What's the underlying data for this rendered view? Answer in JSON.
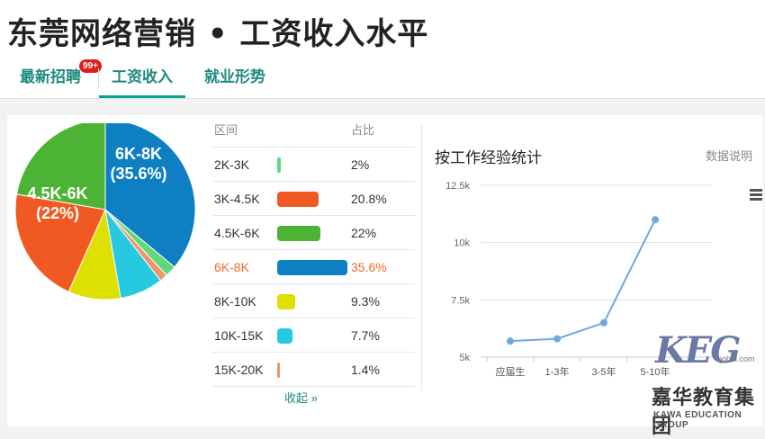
{
  "page": {
    "title": "东莞网络营销 • 工资收入水平"
  },
  "tabs": [
    {
      "label": "最新招聘",
      "badge": "99+"
    },
    {
      "label": "工资收入",
      "active": true
    },
    {
      "label": "就业形势"
    }
  ],
  "distribution": {
    "header_range": "区间",
    "header_share": "占比",
    "rows": [
      {
        "range": "2K-3K",
        "pct": "2%",
        "value": 2,
        "color": "#5fd77a"
      },
      {
        "range": "3K-4.5K",
        "pct": "20.8%",
        "value": 20.8,
        "color": "#f05a22"
      },
      {
        "range": "4.5K-6K",
        "pct": "22%",
        "value": 22,
        "color": "#4db334"
      },
      {
        "range": "6K-8K",
        "pct": "35.6%",
        "value": 35.6,
        "color": "#0e7fc2",
        "highlight": true
      },
      {
        "range": "8K-10K",
        "pct": "9.3%",
        "value": 9.3,
        "color": "#dde000"
      },
      {
        "range": "10K-15K",
        "pct": "7.7%",
        "value": 7.7,
        "color": "#27c9e0"
      },
      {
        "range": "15K-20K",
        "pct": "1.4%",
        "value": 1.4,
        "color": "#f0946a"
      }
    ],
    "collapse_label": "收起 »"
  },
  "pie": {
    "labels": [
      {
        "line1": "6K-8K",
        "line2": "(35.6%)"
      },
      {
        "line1": "4.5K-6K",
        "line2": "(22%)"
      }
    ]
  },
  "experience_chart": {
    "title": "按工作经验统计",
    "note": "数据说明",
    "menu_icon": "hamburger-menu-icon",
    "line_color": "#6fa8dc"
  },
  "chart_data": {
    "type": "line",
    "title": "按工作经验统计",
    "categories": [
      "应届生",
      "1-3年",
      "3-5年",
      "5-10年"
    ],
    "y_ticks": [
      "12.5k",
      "10k",
      "7.5k",
      "5k"
    ],
    "y_values": [
      12500,
      10000,
      7500,
      5000
    ],
    "series": [
      {
        "values": [
          5700,
          5800,
          6500,
          11000
        ]
      }
    ],
    "ylim": [
      5000,
      12500
    ],
    "grid": true
  },
  "watermark": {
    "brand": "KEG",
    "site": "jobui.com",
    "cn_name": "嘉华教育集团",
    "en_name": "KAWA EDUCATION GROUP"
  }
}
